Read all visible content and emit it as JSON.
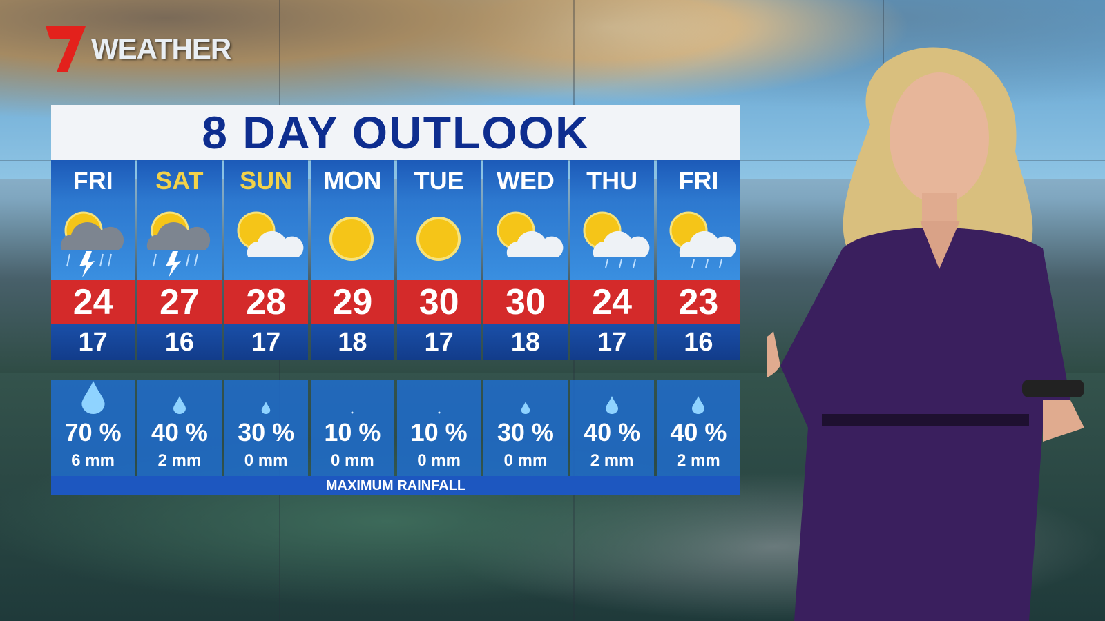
{
  "logo": {
    "text": "WEATHER",
    "brand_color": "#e3211c"
  },
  "title": "8 DAY OUTLOOK",
  "days": [
    {
      "day": "FRI",
      "weekend": false,
      "icon": "sun-cloud-storm-icon",
      "max": "24",
      "min": "17",
      "drop": "large",
      "chance": "70 %",
      "rain": "6 mm"
    },
    {
      "day": "SAT",
      "weekend": true,
      "icon": "sun-cloud-storm-icon",
      "max": "27",
      "min": "16",
      "drop": "medium",
      "chance": "40 %",
      "rain": "2 mm"
    },
    {
      "day": "SUN",
      "weekend": true,
      "icon": "sun-cloud-icon",
      "max": "28",
      "min": "17",
      "drop": "small",
      "chance": "30 %",
      "rain": "0 mm"
    },
    {
      "day": "MON",
      "weekend": false,
      "icon": "sun-icon",
      "max": "29",
      "min": "18",
      "drop": "dot",
      "chance": "10 %",
      "rain": "0 mm"
    },
    {
      "day": "TUE",
      "weekend": false,
      "icon": "sun-icon",
      "max": "30",
      "min": "17",
      "drop": "dot",
      "chance": "10 %",
      "rain": "0 mm"
    },
    {
      "day": "WED",
      "weekend": false,
      "icon": "sun-cloud-icon",
      "max": "30",
      "min": "18",
      "drop": "small",
      "chance": "30 %",
      "rain": "0 mm"
    },
    {
      "day": "THU",
      "weekend": false,
      "icon": "sun-cloud-showers-icon",
      "max": "24",
      "min": "17",
      "drop": "medium",
      "chance": "40 %",
      "rain": "2 mm"
    },
    {
      "day": "FRI",
      "weekend": false,
      "icon": "sun-cloud-showers-icon",
      "max": "23",
      "min": "16",
      "drop": "medium",
      "chance": "40 %",
      "rain": "2 mm"
    }
  ],
  "footer": "MAXIMUM RAINFALL",
  "colors": {
    "title": "#0e2d8f",
    "max_band": "#d42a2a",
    "min_band": "#123c8a",
    "weekend_day": "#f2d24a",
    "presenter_dress": "#3a1f5e"
  }
}
